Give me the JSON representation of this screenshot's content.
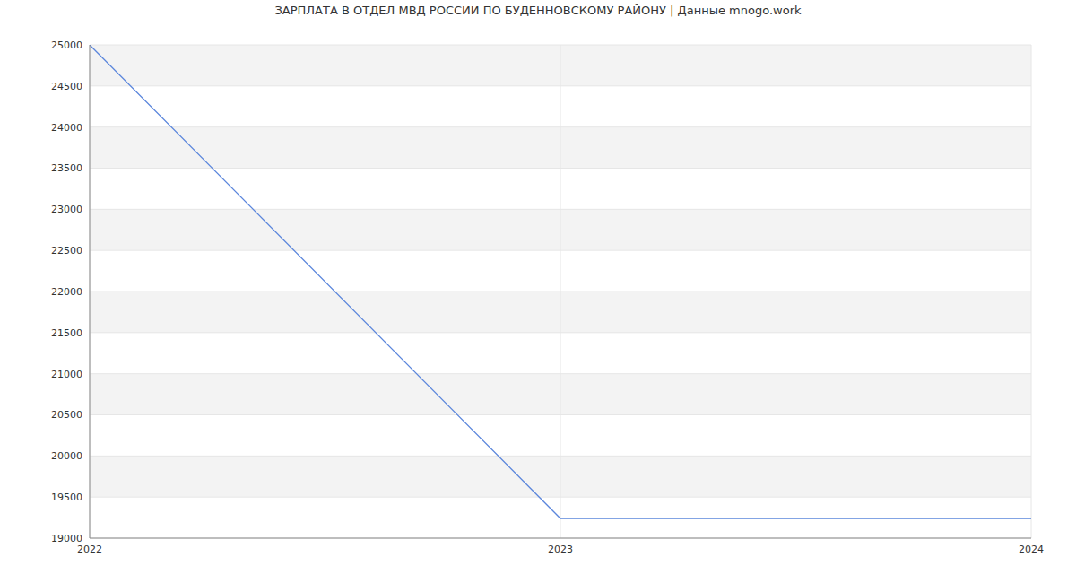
{
  "chart_data": {
    "type": "line",
    "title": "ЗАРПЛАТА В ОТДЕЛ МВД РОССИИ ПО БУДЕННОВСКОМУ РАЙОНУ | Данные mnogo.work",
    "x": [
      2022,
      2023,
      2024
    ],
    "values": [
      25000,
      19240,
      19240
    ],
    "color": "#5b86dc",
    "xlim": [
      2022,
      2024
    ],
    "xticks": [
      2022,
      2023,
      2024
    ],
    "ylim": [
      19000,
      25000
    ],
    "yticks": [
      19000,
      19500,
      20000,
      20500,
      21000,
      21500,
      22000,
      22500,
      23000,
      23500,
      24000,
      24500,
      25000
    ],
    "grid": true
  }
}
